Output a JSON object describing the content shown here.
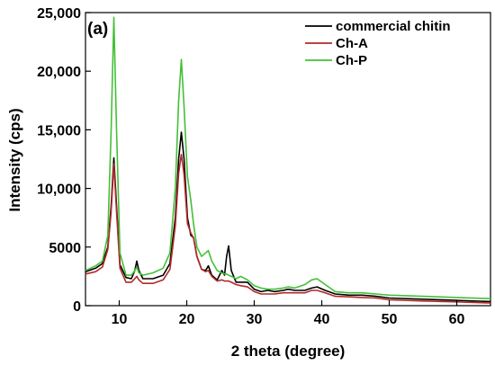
{
  "chart_data": {
    "type": "line",
    "panel_label": "(a)",
    "xlabel": "2 theta (degree)",
    "ylabel": "Intensity (cps)",
    "xlim": [
      5,
      65
    ],
    "ylim": [
      0,
      25000
    ],
    "x_ticks": [
      10,
      20,
      30,
      40,
      50,
      60
    ],
    "x_tick_labels": [
      "10",
      "20",
      "30",
      "40",
      "50",
      "60"
    ],
    "y_ticks": [
      0,
      5000,
      10000,
      15000,
      20000,
      25000
    ],
    "y_tick_labels": [
      "0",
      "5000",
      "10,000",
      "15,000",
      "20,000",
      "25,000"
    ],
    "grid": false,
    "legend_position": "top-right",
    "series": [
      {
        "name": "commercial chitin",
        "color": "#000000",
        "points": [
          [
            5,
            2900
          ],
          [
            6.5,
            3200
          ],
          [
            7.5,
            3600
          ],
          [
            8.3,
            5000
          ],
          [
            8.8,
            8500
          ],
          [
            9.2,
            12600
          ],
          [
            9.6,
            8500
          ],
          [
            10.1,
            3500
          ],
          [
            11,
            2400
          ],
          [
            11.8,
            2300
          ],
          [
            12.3,
            3000
          ],
          [
            12.6,
            3800
          ],
          [
            12.9,
            3000
          ],
          [
            13.5,
            2300
          ],
          [
            15,
            2300
          ],
          [
            16.5,
            2600
          ],
          [
            17.5,
            3600
          ],
          [
            18.3,
            7500
          ],
          [
            18.8,
            12500
          ],
          [
            19.2,
            14800
          ],
          [
            19.6,
            12500
          ],
          [
            20.1,
            7500
          ],
          [
            20.6,
            6000
          ],
          [
            21,
            5800
          ],
          [
            21.5,
            4200
          ],
          [
            22.2,
            3100
          ],
          [
            22.8,
            3000
          ],
          [
            23.2,
            3400
          ],
          [
            23.7,
            2600
          ],
          [
            24.5,
            2200
          ],
          [
            25.2,
            3000
          ],
          [
            25.6,
            2600
          ],
          [
            25.9,
            4200
          ],
          [
            26.2,
            5100
          ],
          [
            26.6,
            3000
          ],
          [
            27.3,
            2000
          ],
          [
            28,
            2000
          ],
          [
            29,
            2000
          ],
          [
            30,
            1400
          ],
          [
            31,
            1200
          ],
          [
            32,
            1300
          ],
          [
            33,
            1200
          ],
          [
            34.3,
            1300
          ],
          [
            35,
            1400
          ],
          [
            36,
            1300
          ],
          [
            37.5,
            1300
          ],
          [
            38.5,
            1500
          ],
          [
            39.3,
            1600
          ],
          [
            40.5,
            1300
          ],
          [
            42,
            1000
          ],
          [
            44,
            900
          ],
          [
            46,
            900
          ],
          [
            48,
            800
          ],
          [
            50,
            650
          ],
          [
            55,
            550
          ],
          [
            60,
            450
          ],
          [
            65,
            350
          ]
        ]
      },
      {
        "name": "Ch-A",
        "color": "#b22a2a",
        "points": [
          [
            5,
            2700
          ],
          [
            6.5,
            2900
          ],
          [
            7.5,
            3300
          ],
          [
            8.3,
            4800
          ],
          [
            8.8,
            8000
          ],
          [
            9.2,
            12100
          ],
          [
            9.6,
            8000
          ],
          [
            10.1,
            3200
          ],
          [
            11,
            2000
          ],
          [
            11.8,
            2000
          ],
          [
            12.3,
            2300
          ],
          [
            12.6,
            2500
          ],
          [
            12.9,
            2200
          ],
          [
            13.5,
            1900
          ],
          [
            15,
            1900
          ],
          [
            16.5,
            2200
          ],
          [
            17.5,
            3100
          ],
          [
            18.3,
            6800
          ],
          [
            18.8,
            11300
          ],
          [
            19.2,
            12900
          ],
          [
            19.6,
            11200
          ],
          [
            20.1,
            7000
          ],
          [
            20.6,
            6200
          ],
          [
            21,
            5800
          ],
          [
            21.5,
            4200
          ],
          [
            22.2,
            3100
          ],
          [
            22.8,
            2900
          ],
          [
            23.2,
            3000
          ],
          [
            23.7,
            2500
          ],
          [
            24.5,
            2100
          ],
          [
            25.2,
            2200
          ],
          [
            25.6,
            2100
          ],
          [
            25.9,
            2100
          ],
          [
            26.2,
            2100
          ],
          [
            26.6,
            2000
          ],
          [
            27.3,
            1800
          ],
          [
            28,
            1700
          ],
          [
            29,
            1600
          ],
          [
            30,
            1200
          ],
          [
            31,
            1000
          ],
          [
            32,
            1000
          ],
          [
            33,
            1000
          ],
          [
            34.3,
            1100
          ],
          [
            35,
            1100
          ],
          [
            36,
            1100
          ],
          [
            37.5,
            1100
          ],
          [
            38.5,
            1300
          ],
          [
            39.3,
            1300
          ],
          [
            40.5,
            1100
          ],
          [
            42,
            800
          ],
          [
            44,
            750
          ],
          [
            46,
            700
          ],
          [
            48,
            650
          ],
          [
            50,
            500
          ],
          [
            55,
            400
          ],
          [
            60,
            320
          ],
          [
            65,
            220
          ]
        ]
      },
      {
        "name": "Ch-P",
        "color": "#44c036",
        "points": [
          [
            5,
            3000
          ],
          [
            6.5,
            3400
          ],
          [
            7.5,
            3800
          ],
          [
            8.3,
            6000
          ],
          [
            8.8,
            15000
          ],
          [
            9.2,
            24600
          ],
          [
            9.6,
            15000
          ],
          [
            10.1,
            4500
          ],
          [
            11,
            2600
          ],
          [
            11.8,
            2600
          ],
          [
            12.3,
            3000
          ],
          [
            12.6,
            3300
          ],
          [
            12.9,
            2800
          ],
          [
            13.5,
            2600
          ],
          [
            15,
            2800
          ],
          [
            16.5,
            3200
          ],
          [
            17.5,
            4500
          ],
          [
            18.3,
            10000
          ],
          [
            18.8,
            17500
          ],
          [
            19.2,
            21000
          ],
          [
            19.6,
            17000
          ],
          [
            20.1,
            11000
          ],
          [
            20.6,
            9000
          ],
          [
            21,
            7000
          ],
          [
            21.5,
            5000
          ],
          [
            22.2,
            4200
          ],
          [
            22.8,
            4500
          ],
          [
            23.2,
            4700
          ],
          [
            23.7,
            3800
          ],
          [
            24.5,
            3000
          ],
          [
            25.2,
            2800
          ],
          [
            25.6,
            2700
          ],
          [
            25.9,
            2700
          ],
          [
            26.2,
            2600
          ],
          [
            26.6,
            2500
          ],
          [
            27.3,
            2300
          ],
          [
            28,
            2500
          ],
          [
            29,
            2200
          ],
          [
            30,
            1700
          ],
          [
            31,
            1500
          ],
          [
            32,
            1400
          ],
          [
            33,
            1400
          ],
          [
            34.3,
            1500
          ],
          [
            35,
            1600
          ],
          [
            36,
            1500
          ],
          [
            37.5,
            1800
          ],
          [
            38.5,
            2200
          ],
          [
            39.3,
            2300
          ],
          [
            40.5,
            1800
          ],
          [
            42,
            1200
          ],
          [
            44,
            1100
          ],
          [
            46,
            1100
          ],
          [
            48,
            1000
          ],
          [
            50,
            900
          ],
          [
            55,
            800
          ],
          [
            60,
            700
          ],
          [
            65,
            600
          ]
        ]
      }
    ]
  }
}
